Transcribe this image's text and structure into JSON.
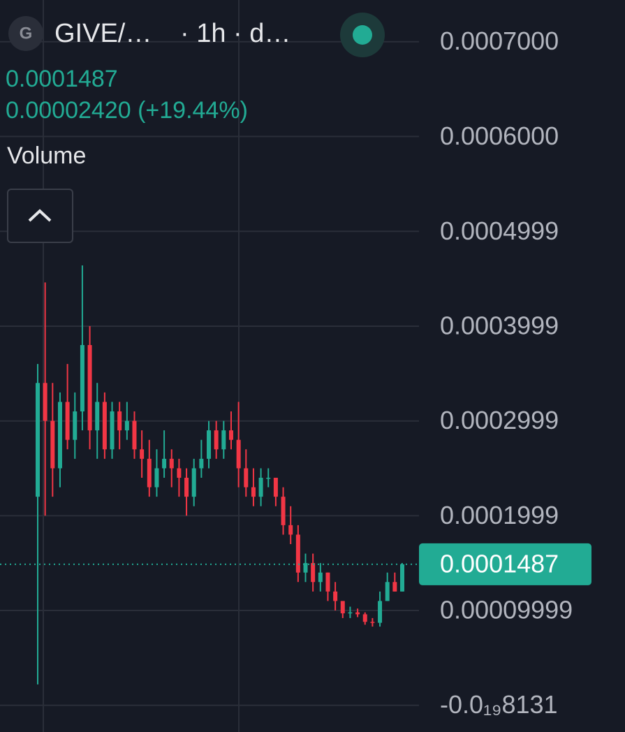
{
  "chart_data": {
    "type": "candlestick",
    "symbol_icon": "G",
    "symbol": "GIVE/…",
    "interval": "· 1h · d…",
    "last_price": 0.0001487,
    "change": "0.00002420 (+19.44%)",
    "volume_label": "Volume",
    "up_color": "#22ab94",
    "down_color": "#f23645",
    "ylim": [
      -2.82e-05,
      0.000744
    ],
    "yticks": [
      {
        "value": 0.0007,
        "label": "0.0007000"
      },
      {
        "value": 0.0006,
        "label": "0.0006000"
      },
      0.0004999,
      0.0003999,
      0.0002999,
      0.0001999,
      9.999e-05,
      {
        "value": -8.131e-20,
        "label": "-0.0₁₉8131"
      }
    ],
    "grid": true,
    "open": [
      0.00022,
      0.00034,
      0.0003,
      0.00025,
      0.00032,
      0.00028,
      0.00031,
      0.00038,
      0.00029,
      0.00032,
      0.00027,
      0.00031,
      0.00029,
      0.0003,
      0.00027,
      0.00026,
      0.00023,
      0.00025,
      0.00026,
      0.00025,
      0.00024,
      0.00022,
      0.00025,
      0.00026,
      0.00029,
      0.00027,
      0.00029,
      0.00028,
      0.00025,
      0.00023,
      0.00022,
      0.00024,
      0.00024,
      0.00022,
      0.00019,
      0.00018,
      0.00014,
      0.00015,
      0.00013,
      0.00014,
      0.00012,
      0.00011,
      9.7e-05,
      9.8e-05,
      9.6e-05,
      8.8e-05,
      8.7e-05,
      0.00011,
      0.00013,
      0.00012
    ],
    "high": [
      0.00036,
      0.000446,
      0.00034,
      0.00033,
      0.00036,
      0.00033,
      0.000464,
      0.0004,
      0.00034,
      0.00033,
      0.00032,
      0.00032,
      0.00032,
      0.00031,
      0.00029,
      0.00028,
      0.00027,
      0.00029,
      0.00027,
      0.00026,
      0.00025,
      0.00026,
      0.00028,
      0.0003,
      0.0003,
      0.0003,
      0.00031,
      0.00032,
      0.00027,
      0.00025,
      0.00025,
      0.00025,
      0.00024,
      0.00023,
      0.00021,
      0.00019,
      0.00016,
      0.00016,
      0.00015,
      0.00014,
      0.00013,
      0.00011,
      0.000104,
      0.000102,
      9.8e-05,
      9.2e-05,
      0.00012,
      0.00014,
      0.00014,
      0.00015
    ],
    "low": [
      2.2e-05,
      0.0002,
      0.00022,
      0.00023,
      0.00027,
      0.00026,
      0.00029,
      0.00027,
      0.00026,
      0.00026,
      0.00026,
      0.00027,
      0.00028,
      0.00026,
      0.00024,
      0.00022,
      0.00022,
      0.00024,
      0.00023,
      0.00022,
      0.0002,
      0.00021,
      0.00024,
      0.00025,
      0.00026,
      0.00026,
      0.00027,
      0.00023,
      0.00022,
      0.00021,
      0.00021,
      0.00023,
      0.00021,
      0.00018,
      0.00017,
      0.00013,
      0.00013,
      0.00012,
      0.00012,
      0.00011,
      0.0001,
      9.2e-05,
      9.2e-05,
      9.3e-05,
      8.5e-05,
      8.3e-05,
      8.3e-05,
      0.00011,
      0.00012,
      0.00012
    ],
    "close": [
      0.00034,
      0.0003,
      0.00025,
      0.00032,
      0.00028,
      0.00031,
      0.00038,
      0.00029,
      0.00032,
      0.00027,
      0.00031,
      0.00029,
      0.0003,
      0.00027,
      0.00026,
      0.00023,
      0.00025,
      0.00026,
      0.00025,
      0.00024,
      0.00022,
      0.00025,
      0.00026,
      0.00029,
      0.00027,
      0.00029,
      0.00028,
      0.00025,
      0.00023,
      0.00022,
      0.00024,
      0.00024,
      0.00022,
      0.00019,
      0.00018,
      0.00014,
      0.00015,
      0.00013,
      0.00014,
      0.00012,
      0.00011,
      9.7e-05,
      9.8e-05,
      9.6e-05,
      8.8e-05,
      8.7e-05,
      0.00011,
      0.00013,
      0.00012,
      0.0001487
    ]
  }
}
